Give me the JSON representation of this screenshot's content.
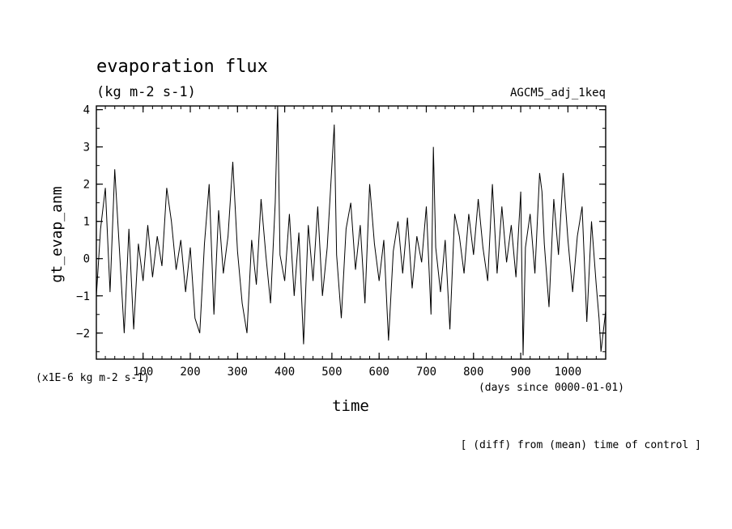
{
  "chart_data": {
    "type": "line",
    "title": "evaporation flux",
    "subtitle": "(kg m-2 s-1)",
    "experiment": "AGCM5_adj_1keq",
    "ylabel": "gt_evap_anm",
    "y_unit_note": "(x1E-6 kg m-2 s-1)",
    "xlabel": "time",
    "x_unit_note": "(days since 0000-01-01)",
    "footnote": "[ (diff) from (mean) time of control ]",
    "xlim": [
      1,
      1080
    ],
    "ylim": [
      -2.7,
      4.1
    ],
    "x_ticks": [
      100,
      200,
      300,
      400,
      500,
      600,
      700,
      800,
      900,
      1000
    ],
    "y_ticks": [
      -2,
      -1,
      0,
      1,
      2,
      3,
      4
    ],
    "x_minor_step": 20,
    "y_minor_step": 0.5,
    "grid": false,
    "line_color": "#000000",
    "series": [
      {
        "x": [
          1,
          10,
          20,
          30,
          40,
          50,
          60,
          70,
          80,
          90,
          100,
          110,
          120,
          130,
          140,
          150,
          160,
          170,
          180,
          190,
          200,
          210,
          220,
          230,
          240,
          250,
          260,
          270,
          280,
          290,
          300,
          310,
          320,
          330,
          340,
          350,
          360,
          370,
          380,
          385,
          390,
          400,
          410,
          420,
          430,
          440,
          450,
          460,
          470,
          480,
          490,
          500,
          505,
          510,
          520,
          530,
          540,
          550,
          560,
          570,
          580,
          590,
          600,
          610,
          620,
          630,
          640,
          650,
          660,
          670,
          680,
          690,
          700,
          710,
          715,
          720,
          730,
          740,
          750,
          760,
          770,
          780,
          790,
          800,
          810,
          820,
          830,
          840,
          850,
          860,
          870,
          880,
          890,
          900,
          905,
          910,
          920,
          930,
          940,
          945,
          950,
          960,
          970,
          980,
          990,
          1000,
          1010,
          1020,
          1030,
          1040,
          1050,
          1060,
          1066,
          1070,
          1080
        ],
        "y": [
          -1.0,
          0.8,
          1.9,
          -0.9,
          2.4,
          0.2,
          -2.0,
          0.8,
          -1.9,
          0.4,
          -0.6,
          0.9,
          -0.5,
          0.6,
          -0.2,
          1.9,
          1.0,
          -0.3,
          0.5,
          -0.9,
          0.3,
          -1.6,
          -2.0,
          0.4,
          2.0,
          -1.5,
          1.3,
          -0.4,
          0.6,
          2.6,
          0.2,
          -1.2,
          -2.0,
          0.5,
          -0.7,
          1.6,
          0.1,
          -1.2,
          1.5,
          4.1,
          0.1,
          -0.6,
          1.2,
          -1.0,
          0.7,
          -2.3,
          0.9,
          -0.6,
          1.4,
          -1.0,
          0.3,
          2.5,
          3.6,
          0.1,
          -1.6,
          0.8,
          1.5,
          -0.3,
          0.9,
          -1.2,
          2.0,
          0.4,
          -0.6,
          0.5,
          -2.2,
          0.2,
          1.0,
          -0.4,
          1.1,
          -0.8,
          0.6,
          -0.1,
          1.4,
          -1.5,
          3.0,
          0.3,
          -0.9,
          0.5,
          -1.9,
          1.2,
          0.6,
          -0.4,
          1.2,
          0.1,
          1.6,
          0.3,
          -0.6,
          2.0,
          -0.4,
          1.4,
          -0.1,
          0.9,
          -0.5,
          1.8,
          -2.6,
          0.3,
          1.2,
          -0.4,
          2.3,
          1.8,
          0.4,
          -1.3,
          1.6,
          0.1,
          2.3,
          0.5,
          -0.9,
          0.6,
          1.4,
          -1.7,
          1.0,
          -0.7,
          -1.6,
          -2.5,
          -1.4
        ]
      }
    ]
  }
}
